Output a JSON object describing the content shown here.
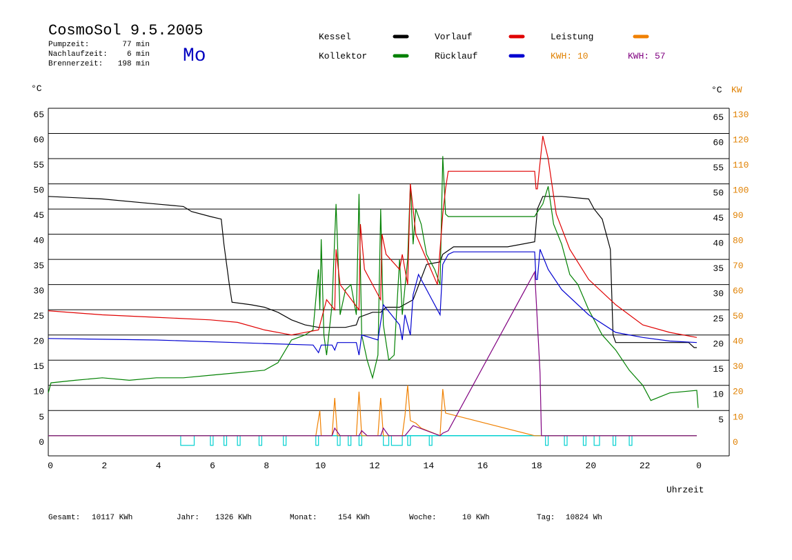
{
  "chart_data": {
    "type": "line",
    "title": "CosmoSol 9.5.2005",
    "info": [
      {
        "label": "Pumpzeit:",
        "value": "77 min"
      },
      {
        "label": "Nachlaufzeit:",
        "value": "6 min"
      },
      {
        "label": "Brennerzeit:",
        "value": "198 min"
      }
    ],
    "weekday": "Mo",
    "kwh_labels": [
      {
        "text": "KWH: 10",
        "color": "#e08000"
      },
      {
        "text": "KWH: 57",
        "color": "#800080"
      }
    ],
    "y_unit": "°C",
    "y2_units": [
      "°C",
      "KW"
    ],
    "x_label": "Uhrzeit",
    "footer": [
      {
        "label": "Gesamt:",
        "value": "10117 KWh"
      },
      {
        "label": "Jahr:",
        "value": "1326 KWh"
      },
      {
        "label": "Monat:",
        "value": "154 KWh"
      },
      {
        "label": "Woche:",
        "value": "10 KWh"
      },
      {
        "label": "Tag:",
        "value": "10824 Wh"
      }
    ],
    "xlim": [
      0,
      25.2
    ],
    "xticks": [
      0,
      2,
      4,
      6,
      8,
      10,
      12,
      14,
      16,
      18,
      20,
      22,
      {
        "value": 24,
        "label": "0"
      }
    ],
    "ylim": [
      -4,
      65
    ],
    "yticks": [
      0,
      5,
      10,
      15,
      20,
      25,
      30,
      35,
      40,
      45,
      50,
      55,
      60,
      65
    ],
    "yticks_right": [
      5,
      10,
      15,
      20,
      25,
      30,
      35,
      40,
      45,
      50,
      55,
      60,
      65
    ],
    "y2lim": [
      -8,
      130
    ],
    "y2ticks": [
      0,
      10,
      20,
      30,
      40,
      50,
      60,
      70,
      80,
      90,
      100,
      110,
      120,
      130
    ],
    "grid": true,
    "series": [
      {
        "name": "Kessel",
        "color": "#000000",
        "x": [
          0,
          2,
          4,
          5,
          5.3,
          6,
          6.4,
          6.5,
          6.7,
          6.8,
          7.5,
          8,
          8.5,
          9,
          9.5,
          10,
          11,
          11.4,
          11.5,
          12,
          12.3,
          12.5,
          13,
          13.5,
          14,
          14.5,
          14.6,
          15,
          17,
          18,
          18.1,
          18.3,
          19,
          20,
          20.2,
          20.5,
          20.8,
          20.9,
          21,
          23,
          23.7,
          23.9,
          24
        ],
        "values": [
          47.5,
          47,
          46,
          45.5,
          44.5,
          43.5,
          43,
          38,
          30,
          26.5,
          26,
          25.5,
          24.5,
          23,
          22,
          21.5,
          21.5,
          22,
          23.5,
          24.5,
          24.5,
          25.5,
          25.5,
          27,
          34,
          34.5,
          36,
          37.5,
          37.5,
          38.5,
          45,
          47.5,
          47.5,
          47,
          45,
          43,
          37,
          20,
          18.5,
          18.5,
          18.5,
          17.5,
          17.5
        ]
      },
      {
        "name": "Kollektor",
        "color": "#008000",
        "x": [
          0,
          0.1,
          1,
          2,
          3,
          4,
          5,
          6,
          7,
          8,
          8.5,
          9,
          9.5,
          9.8,
          10,
          10.05,
          10.1,
          10.2,
          10.3,
          10.5,
          10.65,
          10.8,
          11,
          11.2,
          11.4,
          11.5,
          11.6,
          11.8,
          12,
          12.2,
          12.3,
          12.4,
          12.6,
          12.8,
          13,
          13.1,
          13.3,
          13.4,
          13.5,
          13.6,
          13.8,
          14,
          14.3,
          14.5,
          14.6,
          14.7,
          14.8,
          18,
          18.05,
          18.3,
          18.5,
          18.7,
          19,
          19.3,
          19.6,
          20,
          20.5,
          21,
          21.5,
          22,
          22.3,
          23,
          24,
          24.05
        ],
        "values": [
          8.5,
          10.5,
          11,
          11.5,
          11,
          11.5,
          11.5,
          12,
          12.5,
          13,
          14.5,
          19,
          20,
          21,
          33,
          25,
          39,
          20,
          16,
          26,
          46,
          24,
          29,
          30,
          24,
          48,
          20,
          15,
          11.5,
          16,
          45,
          22,
          15,
          16,
          35,
          24,
          35,
          50,
          38,
          45,
          42,
          36,
          33,
          30,
          55.5,
          44,
          43.5,
          43.5,
          44,
          46,
          49.5,
          42,
          38,
          32,
          30,
          25,
          20,
          17,
          13,
          10,
          7,
          8.5,
          9,
          5.5
        ]
      },
      {
        "name": "Vorlauf",
        "color": "#e00000",
        "x": [
          0,
          2,
          4,
          6,
          7,
          8,
          9,
          10,
          10.3,
          10.6,
          10.65,
          10.8,
          11.5,
          11.55,
          11.7,
          12.3,
          12.35,
          12.5,
          13,
          13.1,
          13.3,
          13.4,
          13.5,
          13.6,
          14,
          14.4,
          14.6,
          14.7,
          14.8,
          18,
          18.05,
          18.1,
          18.3,
          18.5,
          18.8,
          19.3,
          20,
          21,
          22,
          23,
          24
        ],
        "values": [
          24.8,
          24,
          23.5,
          23,
          22.5,
          21,
          20,
          21,
          27,
          25,
          37,
          30,
          25,
          42,
          33,
          27,
          40,
          36,
          33,
          36,
          30,
          50,
          45,
          40,
          35,
          30,
          44,
          49,
          52.5,
          52.5,
          49,
          49,
          59.5,
          55,
          44,
          37,
          31,
          26,
          22,
          20.5,
          19.5
        ]
      },
      {
        "name": "Rücklauf",
        "color": "#0000d0",
        "x": [
          0,
          4,
          8,
          9.8,
          10,
          10.1,
          10.5,
          10.6,
          10.7,
          11.4,
          11.5,
          11.6,
          12.2,
          12.4,
          13,
          13.1,
          13.2,
          13.4,
          13.5,
          13.7,
          14.2,
          14.5,
          14.6,
          14.8,
          15,
          18,
          18.05,
          18.1,
          18.2,
          18.5,
          19,
          20,
          21,
          22,
          23,
          24
        ],
        "values": [
          19.3,
          19,
          18.3,
          18,
          16.5,
          18,
          18,
          17,
          18.5,
          18.5,
          16,
          20,
          19,
          26,
          22,
          19,
          24,
          20,
          28,
          32,
          27,
          24,
          34,
          36,
          36.5,
          36.5,
          31,
          31,
          37,
          33,
          29,
          24,
          20.5,
          19.5,
          18.8,
          18.5
        ]
      },
      {
        "name": "Leistung",
        "color": "#f08000",
        "axis": "y2",
        "x": [
          0,
          9.9,
          10.05,
          10.1,
          10.5,
          10.6,
          10.7,
          11.4,
          11.5,
          11.6,
          12.2,
          12.3,
          12.4,
          13.1,
          13.2,
          13.3,
          13.4,
          13.6,
          13.8,
          14.5,
          14.6,
          14.7,
          18,
          24
        ],
        "values": [
          0,
          0,
          10,
          0,
          0,
          15,
          0,
          0,
          17.5,
          0,
          0,
          15,
          0,
          0,
          8,
          20,
          6,
          5,
          3,
          0,
          18.5,
          9,
          0,
          0
        ]
      },
      {
        "color": "#800080",
        "axis": "y2",
        "x": [
          0,
          10.5,
          10.6,
          10.8,
          11.5,
          11.6,
          11.8,
          12.3,
          12.4,
          12.6,
          13.2,
          13.5,
          14,
          14.5,
          14.6,
          14.8,
          18,
          18.05,
          18.2,
          18.25,
          24
        ],
        "values": [
          0,
          0,
          3,
          0,
          0,
          2,
          0,
          0,
          3,
          0,
          0,
          4,
          2,
          0,
          1,
          2,
          65,
          55,
          25,
          0,
          0
        ]
      }
    ],
    "pump": {
      "color": "#00d0d0",
      "intervals": [
        [
          4.9,
          5.4
        ],
        [
          6.0,
          6.1
        ],
        [
          6.5,
          6.6
        ],
        [
          7.0,
          7.1
        ],
        [
          7.8,
          7.9
        ],
        [
          8.7,
          8.8
        ],
        [
          9.9,
          10.0
        ],
        [
          10.7,
          10.8
        ],
        [
          11.1,
          11.2
        ],
        [
          11.5,
          11.6
        ],
        [
          12.4,
          12.6
        ],
        [
          12.7,
          13.1
        ],
        [
          13.3,
          13.4
        ],
        [
          14.1,
          14.2
        ],
        [
          18.4,
          18.5
        ],
        [
          19.1,
          19.2
        ],
        [
          19.8,
          19.9
        ],
        [
          20.2,
          20.4
        ],
        [
          20.9,
          21.0
        ],
        [
          21.5,
          21.6
        ]
      ]
    }
  }
}
